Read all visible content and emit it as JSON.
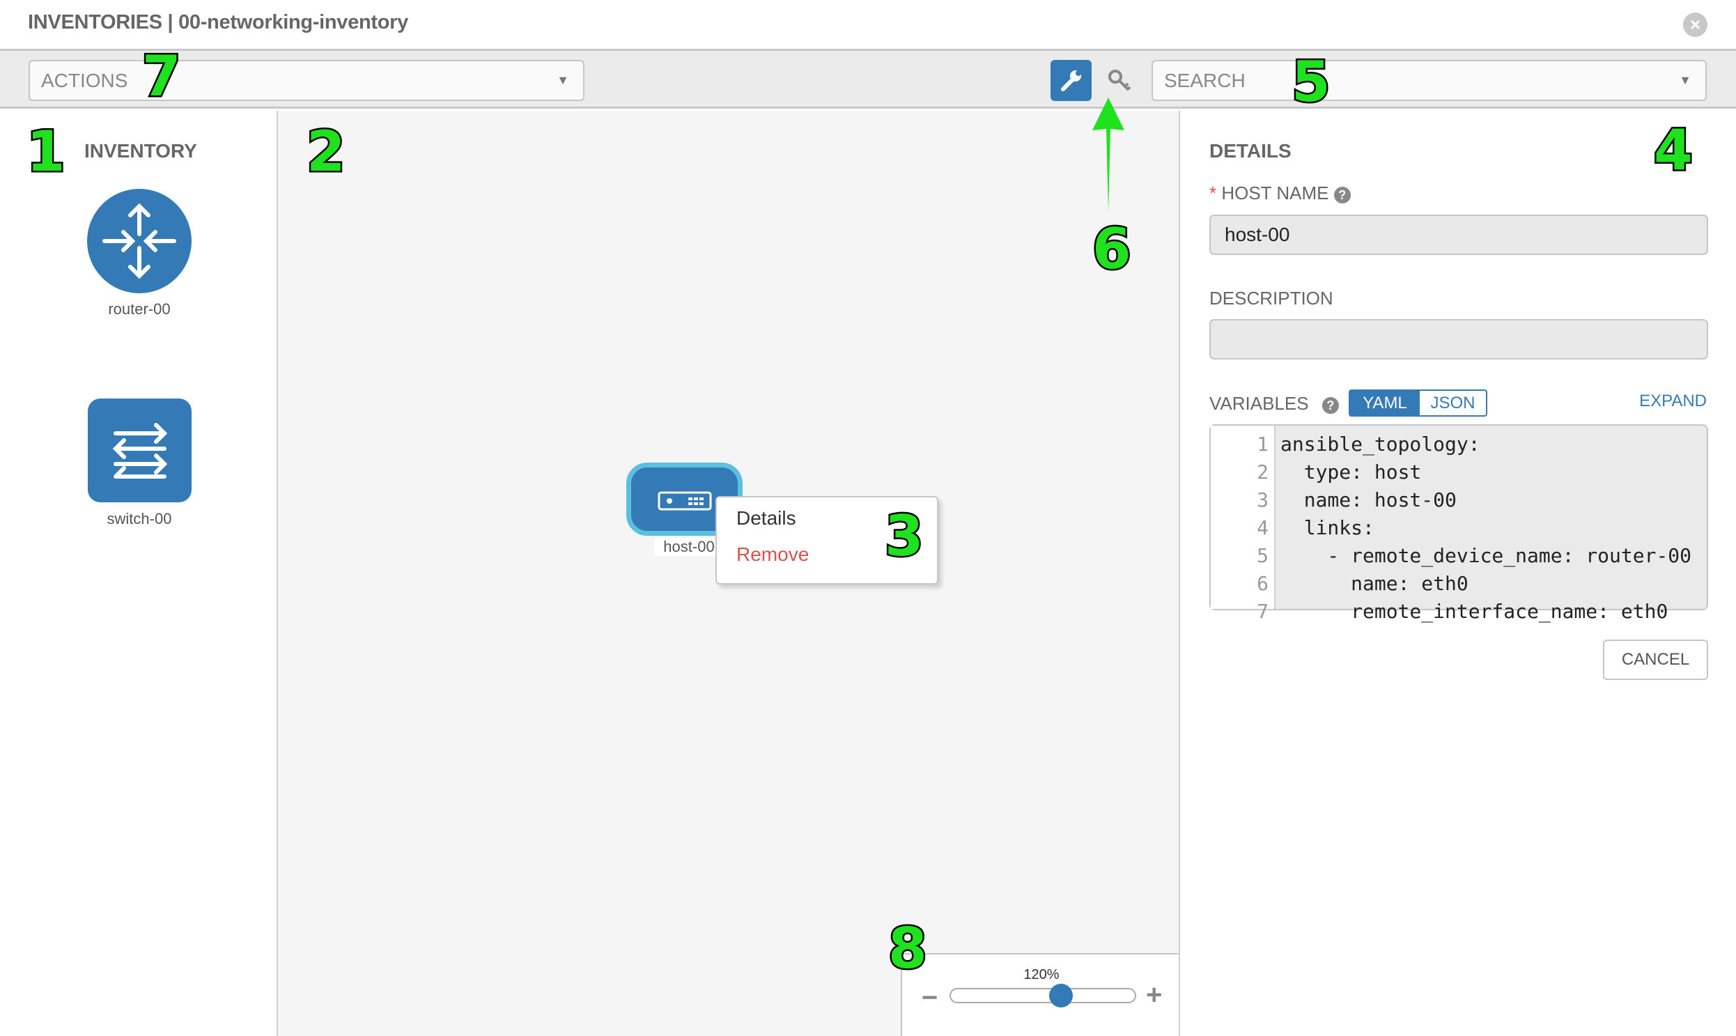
{
  "header": {
    "title": "INVENTORIES | 00-networking-inventory",
    "close_icon": "close-circle-icon"
  },
  "toolbar": {
    "actions_placeholder": "ACTIONS",
    "search_placeholder": "SEARCH",
    "wrench_icon": "wrench-icon",
    "key_icon": "key-icon"
  },
  "inventory": {
    "heading": "INVENTORY",
    "items": [
      {
        "label": "router-00",
        "icon": "router-icon"
      },
      {
        "label": "switch-00",
        "icon": "switch-icon"
      }
    ]
  },
  "canvas": {
    "host": {
      "label": "host-00",
      "icon": "server-icon"
    },
    "context_menu": {
      "details": "Details",
      "remove": "Remove"
    }
  },
  "zoom": {
    "label": "120%",
    "minus": "−",
    "plus": "+",
    "level_fraction": 0.6
  },
  "details": {
    "heading": "DETAILS",
    "required_mark": "*",
    "host_name_label": "HOST NAME",
    "host_name_value": "host-00",
    "description_label": "DESCRIPTION",
    "description_value": "",
    "variables_label": "VARIABLES",
    "yaml": "YAML",
    "json": "JSON",
    "expand": "EXPAND",
    "code": [
      {
        "n": "1",
        "t": "ansible_topology:"
      },
      {
        "n": "2",
        "t": "  type: host"
      },
      {
        "n": "3",
        "t": "  name: host-00"
      },
      {
        "n": "4",
        "t": "  links:"
      },
      {
        "n": "5",
        "t": "    - remote_device_name: router-00"
      },
      {
        "n": "6",
        "t": "      name: eth0"
      },
      {
        "n": "7",
        "t": "      remote_interface_name: eth0"
      }
    ],
    "cancel": "CANCEL"
  },
  "annotations": [
    "1",
    "2",
    "3",
    "4",
    "5",
    "6",
    "7",
    "8"
  ],
  "colors": {
    "primary": "#337ab7",
    "node_border": "#5bc0de",
    "danger": "#d9534f",
    "annotation": "#1ee21e"
  }
}
